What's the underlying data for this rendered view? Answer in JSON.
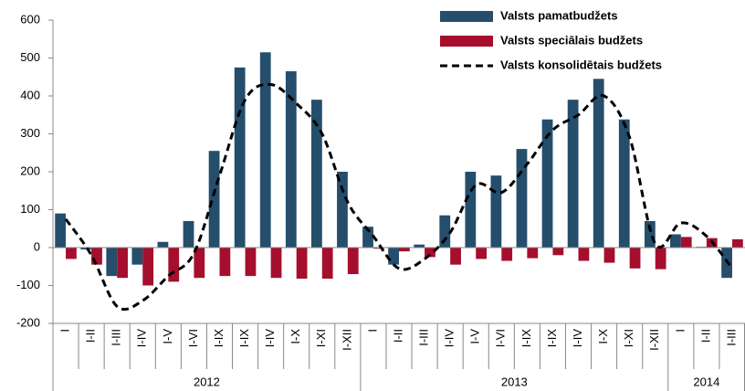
{
  "chart_data": {
    "type": "bar",
    "groups": [
      {
        "label": "2012",
        "categories": [
          "I",
          "I-II",
          "I-III",
          "I-IV",
          "I-V",
          "I-VI",
          "I-IX",
          "I-IX",
          "I-IV",
          "I-X",
          "I-XI",
          "I-XII"
        ]
      },
      {
        "label": "2013",
        "categories": [
          "I",
          "I-II",
          "I-III",
          "I-IV",
          "I-V",
          "I-VI",
          "I-IX",
          "I-IX",
          "I-IV",
          "I-X",
          "I-XI",
          "I-XII"
        ]
      },
      {
        "label": "2014",
        "categories": [
          "I",
          "I-II",
          "I-III"
        ]
      }
    ],
    "series": [
      {
        "name": "Valsts pamatbudžets",
        "kind": "bar",
        "color": "#254e6d",
        "values": [
          90,
          -5,
          -75,
          -45,
          15,
          70,
          255,
          475,
          515,
          465,
          390,
          200,
          55,
          -45,
          8,
          85,
          200,
          190,
          260,
          338,
          390,
          445,
          338,
          70,
          35,
          2,
          -80
        ]
      },
      {
        "name": "Valsts speciālais budžets",
        "kind": "bar",
        "color": "#a50f2d",
        "values": [
          -30,
          -45,
          -80,
          -100,
          -90,
          -80,
          -75,
          -75,
          -80,
          -82,
          -82,
          -70,
          -3,
          -10,
          -25,
          -45,
          -30,
          -35,
          -28,
          -20,
          -35,
          -40,
          -55,
          -57,
          28,
          25,
          22
        ]
      },
      {
        "name": "Valsts konsolidētais budžets",
        "kind": "line",
        "color": "#000000",
        "values": [
          75,
          -20,
          -155,
          -140,
          -75,
          -15,
          190,
          390,
          430,
          380,
          300,
          120,
          30,
          -55,
          -30,
          40,
          165,
          145,
          220,
          310,
          350,
          400,
          290,
          10,
          65,
          30,
          -55
        ]
      }
    ],
    "ylim": [
      -200,
      600
    ],
    "yticks": [
      -200,
      -100,
      0,
      100,
      200,
      300,
      400,
      500,
      600
    ],
    "grid": false,
    "legend": "top-right"
  }
}
